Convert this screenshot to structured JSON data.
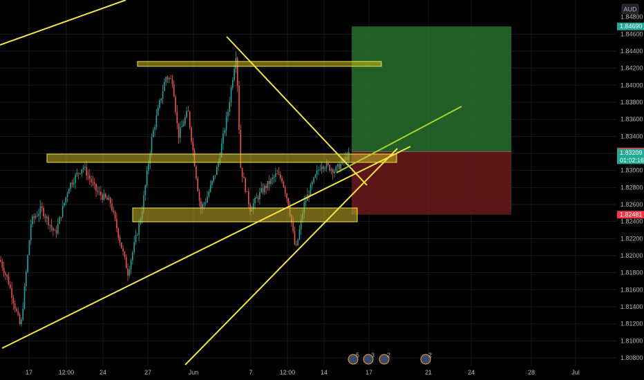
{
  "currency_label": "AUD",
  "price_tags": [
    {
      "price": 1.8469,
      "label": "1.84690",
      "color": "#22ab94"
    },
    {
      "price": 1.83222,
      "label": "1.83222",
      "color": "#f23645"
    },
    {
      "price": 1.83209,
      "label": "1.83209",
      "sublabel": "01:02:16",
      "color": "#22ab94"
    },
    {
      "price": 1.82481,
      "label": "1.82481",
      "color": "#f23645"
    }
  ],
  "event_badges": [
    "5",
    "3",
    "2",
    "2"
  ],
  "colors": {
    "up": "#26a69a",
    "down": "#ef5350",
    "drawing": "#f5e642",
    "target_zone": "#2e7d32",
    "stop_zone": "#6b1b1b"
  },
  "chart_data": {
    "type": "candlestick",
    "instrument_currency": "AUD",
    "y_axis": {
      "range": [
        1.8072,
        1.8482
      ],
      "ticks": [
        "1.80800",
        "1.81000",
        "1.81200",
        "1.81400",
        "1.81600",
        "1.81800",
        "1.82000",
        "1.82200",
        "1.82400",
        "1.82600",
        "1.82800",
        "1.83000",
        "1.83200",
        "1.83400",
        "1.83600",
        "1.83800",
        "1.84000",
        "1.84200",
        "1.84400",
        "1.84600"
      ],
      "top_partial_tick": "1.84800"
    },
    "x_axis": {
      "ticks": [
        "17",
        "12:00",
        "24",
        "27",
        "Jun",
        "7",
        "12:00",
        "14",
        "17",
        "21",
        "24",
        "28",
        "Jul"
      ]
    },
    "candles_summary": {
      "start_price": 1.8195,
      "low": 1.8108,
      "high": 1.8448,
      "last": 1.83209
    },
    "horizontal_zones": [
      {
        "label": "resistance",
        "low": 1.8417,
        "high": 1.8423
      },
      {
        "label": "mid-zone",
        "low": 1.8303,
        "high": 1.8312
      },
      {
        "label": "support",
        "low": 1.8242,
        "high": 1.8258
      }
    ],
    "position": {
      "type": "long",
      "entry": 1.83222,
      "target": 1.8469,
      "stop": 1.82481
    }
  }
}
